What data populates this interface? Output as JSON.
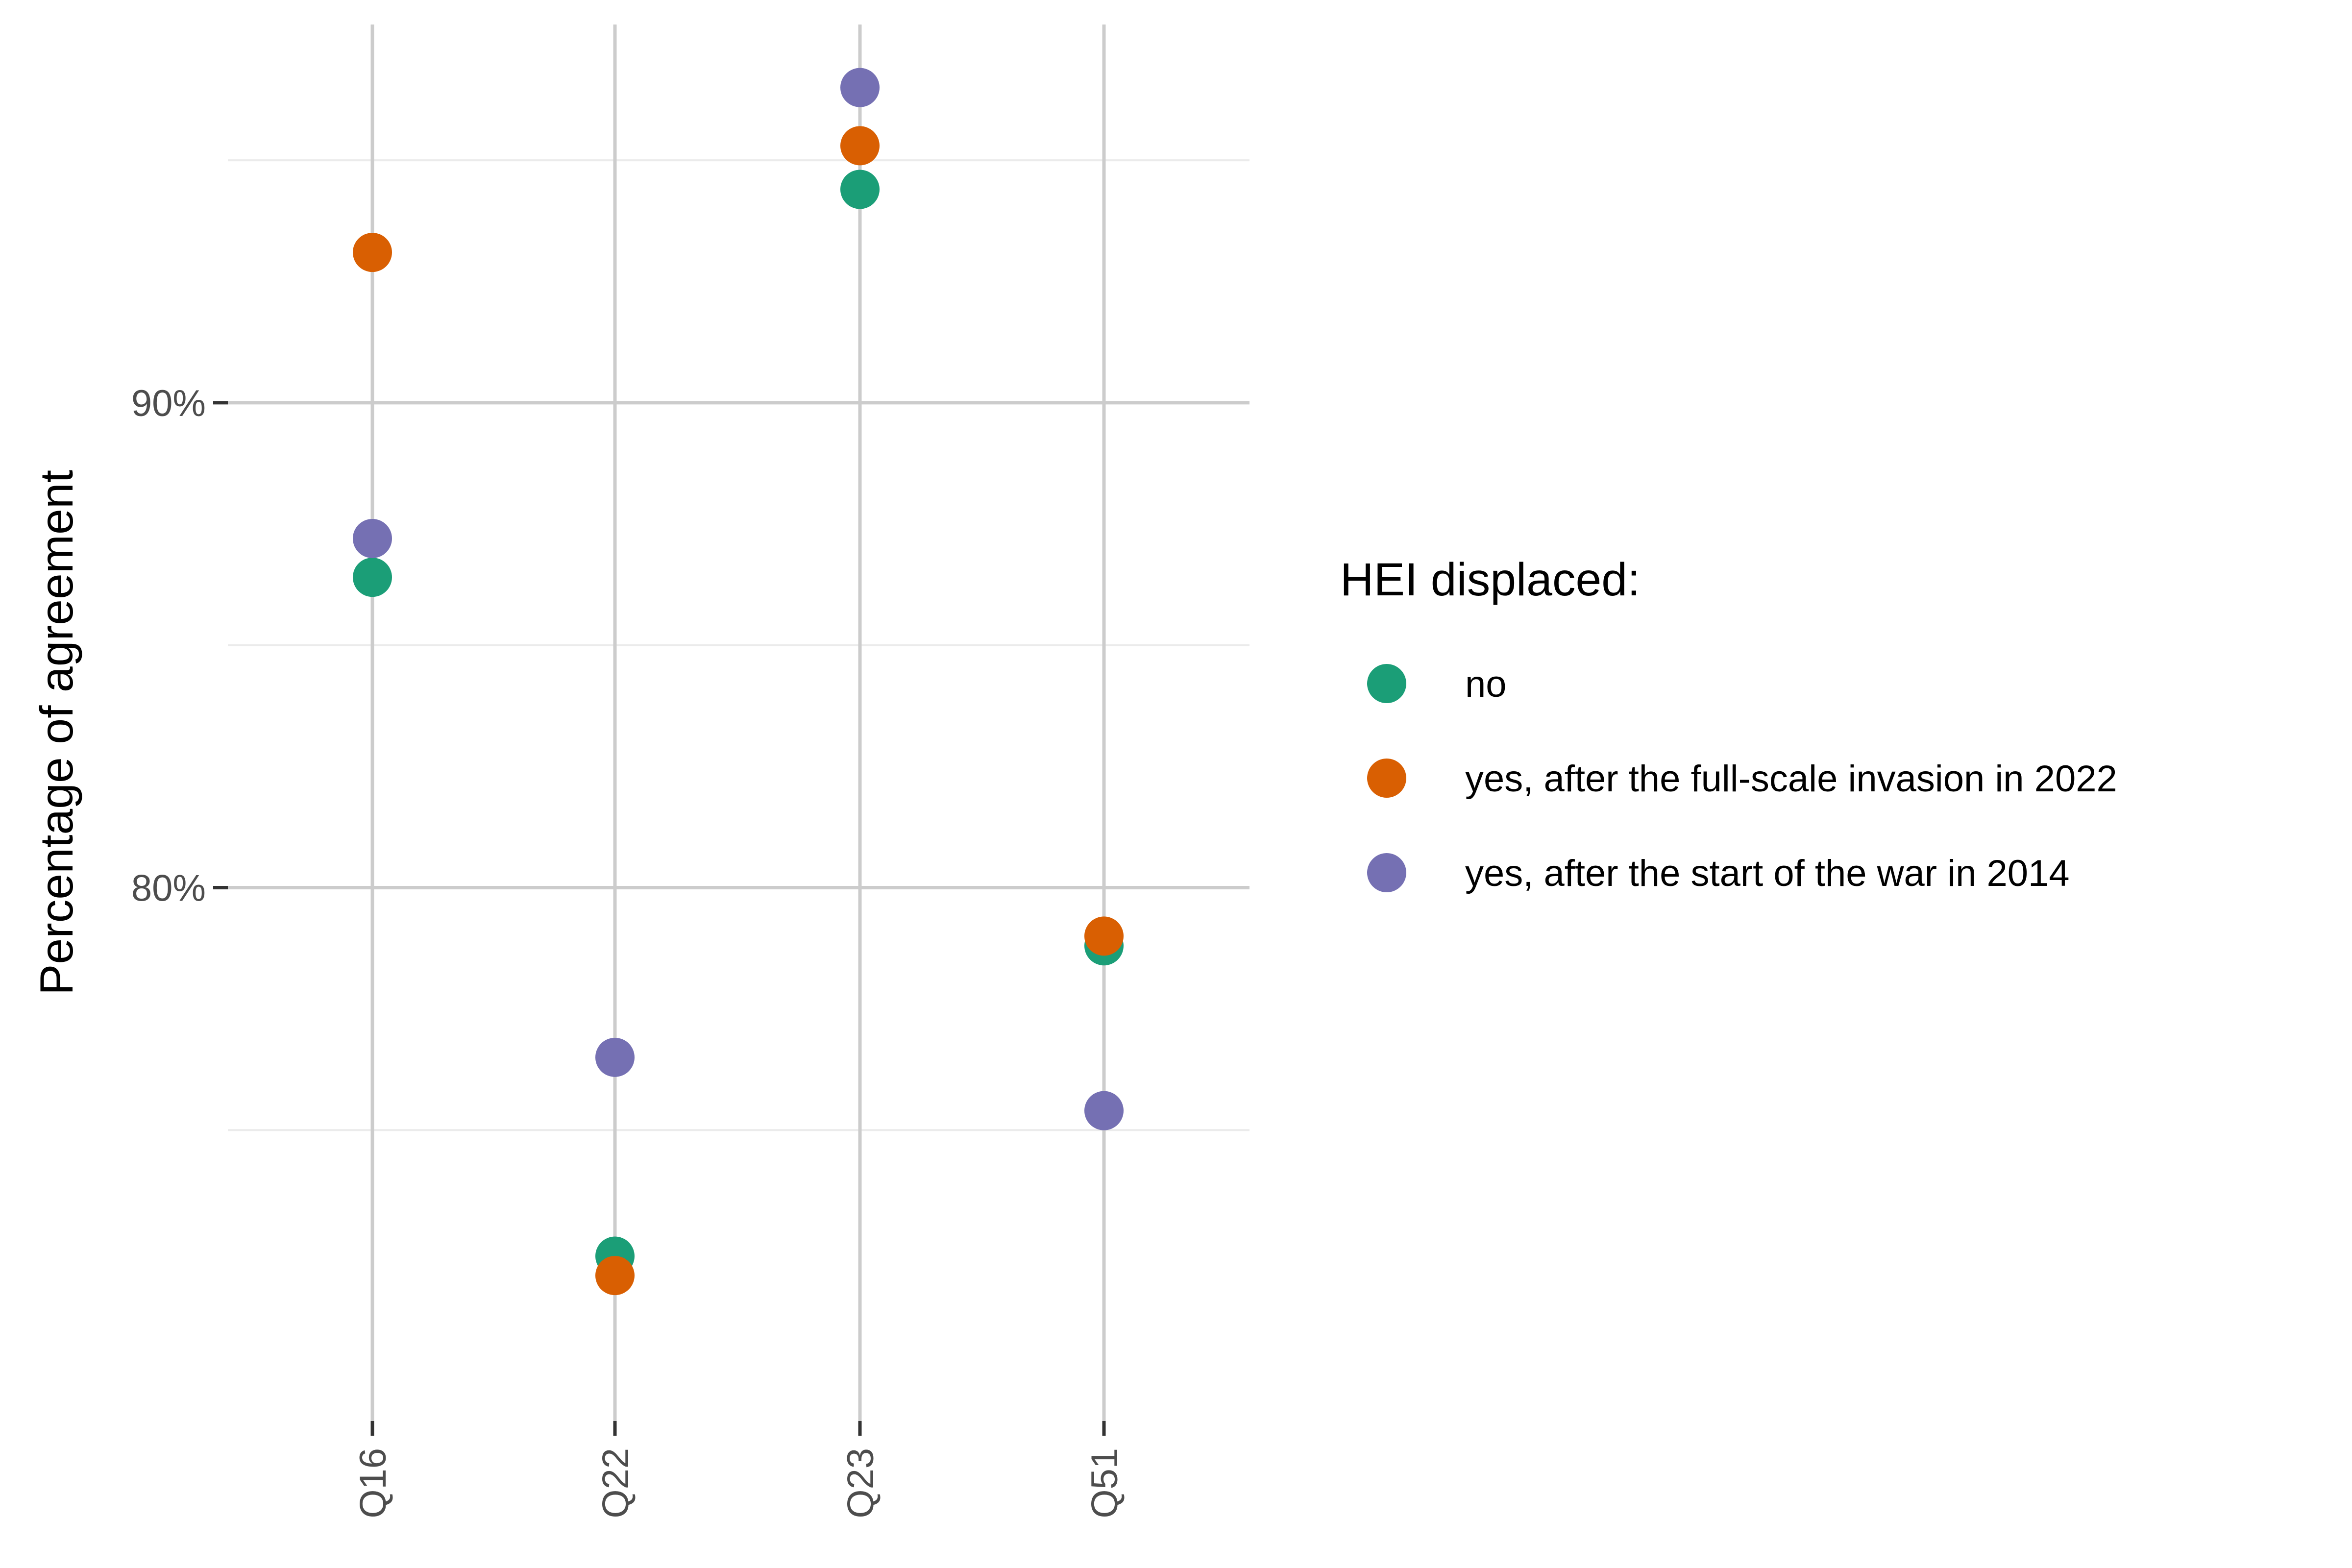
{
  "chart_data": {
    "type": "scatter",
    "title": "",
    "xlabel": "",
    "ylabel": "Percentage of agreement",
    "categories": [
      "Q16",
      "Q22",
      "Q23",
      "Q51"
    ],
    "ylim": [
      69,
      97.8
    ],
    "y_major_ticks": [
      80,
      90
    ],
    "y_minor_ticks": [
      75,
      85,
      95
    ],
    "y_tick_labels": [
      "80%",
      "90%"
    ],
    "grid": true,
    "legend": {
      "title": "HEI displaced:",
      "position": "right"
    },
    "series": [
      {
        "name": "no",
        "color": "#1b9e77",
        "values": [
          86.4,
          72.4,
          94.4,
          78.8
        ]
      },
      {
        "name": "yes, after the full-scale invasion in 2022",
        "color": "#d95f02",
        "values": [
          93.1,
          72.0,
          95.3,
          79.0
        ]
      },
      {
        "name": "yes, after the start of the war in 2014",
        "color": "#7570b3",
        "values": [
          87.2,
          76.5,
          96.5,
          75.4
        ]
      }
    ]
  }
}
